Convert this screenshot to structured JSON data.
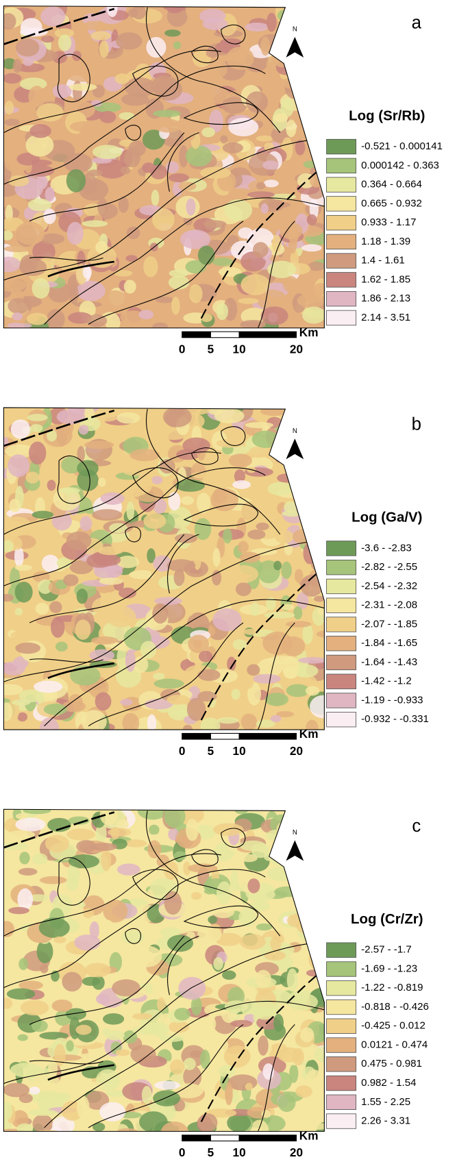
{
  "panels": [
    {
      "letter": "a",
      "north": "N",
      "legend": {
        "title": "Log (Sr/Rb)",
        "classes": [
          {
            "label": "-0.521 - 0.000141",
            "color": "#6e9a58"
          },
          {
            "label": "0.000142 - 0.363",
            "color": "#a6c47a"
          },
          {
            "label": "0.364 - 0.664",
            "color": "#e6e8a0"
          },
          {
            "label": "0.665 - 0.932",
            "color": "#f5e6a0"
          },
          {
            "label": "0.933 - 1.17",
            "color": "#f0cf88"
          },
          {
            "label": "1.18 - 1.39",
            "color": "#e3b07e"
          },
          {
            "label": "1.4 - 1.61",
            "color": "#cf9a7e"
          },
          {
            "label": "1.62 - 1.85",
            "color": "#c9857e"
          },
          {
            "label": "1.86 - 2.13",
            "color": "#e0b6c3"
          },
          {
            "label": "2.14 - 3.51",
            "color": "#fbeef3"
          }
        ]
      },
      "scale_bar": {
        "ticks": [
          0,
          5,
          10,
          20
        ],
        "unit": "Km"
      }
    },
    {
      "letter": "b",
      "north": "N",
      "legend": {
        "title": "Log (Ga/V)",
        "classes": [
          {
            "label": "-3.6 - -2.83",
            "color": "#6e9a58"
          },
          {
            "label": "-2.82 - -2.55",
            "color": "#a6c47a"
          },
          {
            "label": "-2.54 - -2.32",
            "color": "#e6e8a0"
          },
          {
            "label": "-2.31 - -2.08",
            "color": "#f5e6a0"
          },
          {
            "label": "-2.07 - -1.85",
            "color": "#f0cf88"
          },
          {
            "label": "-1.84 - -1.65",
            "color": "#e3b07e"
          },
          {
            "label": "-1.64 - -1.43",
            "color": "#cf9a7e"
          },
          {
            "label": "-1.42 - -1.2",
            "color": "#c9857e"
          },
          {
            "label": "-1.19 - -0.933",
            "color": "#e0b6c3"
          },
          {
            "label": "-0.932 - -0.331",
            "color": "#fbeef3"
          }
        ]
      },
      "scale_bar": {
        "ticks": [
          0,
          5,
          10,
          20
        ],
        "unit": "Km"
      }
    },
    {
      "letter": "c",
      "north": "N",
      "legend": {
        "title": "Log (Cr/Zr)",
        "classes": [
          {
            "label": "-2.57 - -1.7",
            "color": "#6e9a58"
          },
          {
            "label": "-1.69 - -1.23",
            "color": "#a6c47a"
          },
          {
            "label": "-1.22 - -0.819",
            "color": "#e6e8a0"
          },
          {
            "label": "-0.818 - -0.426",
            "color": "#f5e6a0"
          },
          {
            "label": "-0.425 - 0.012",
            "color": "#f0cf88"
          },
          {
            "label": "0.0121 - 0.474",
            "color": "#e3b07e"
          },
          {
            "label": "0.475 - 0.981",
            "color": "#cf9a7e"
          },
          {
            "label": "0.982 - 1.54",
            "color": "#c9857e"
          },
          {
            "label": "1.55 - 2.25",
            "color": "#e0b6c3"
          },
          {
            "label": "2.26 - 3.31",
            "color": "#fbeef3"
          }
        ]
      },
      "scale_bar": {
        "ticks": [
          0,
          5,
          10,
          20
        ],
        "unit": "Km"
      }
    }
  ]
}
